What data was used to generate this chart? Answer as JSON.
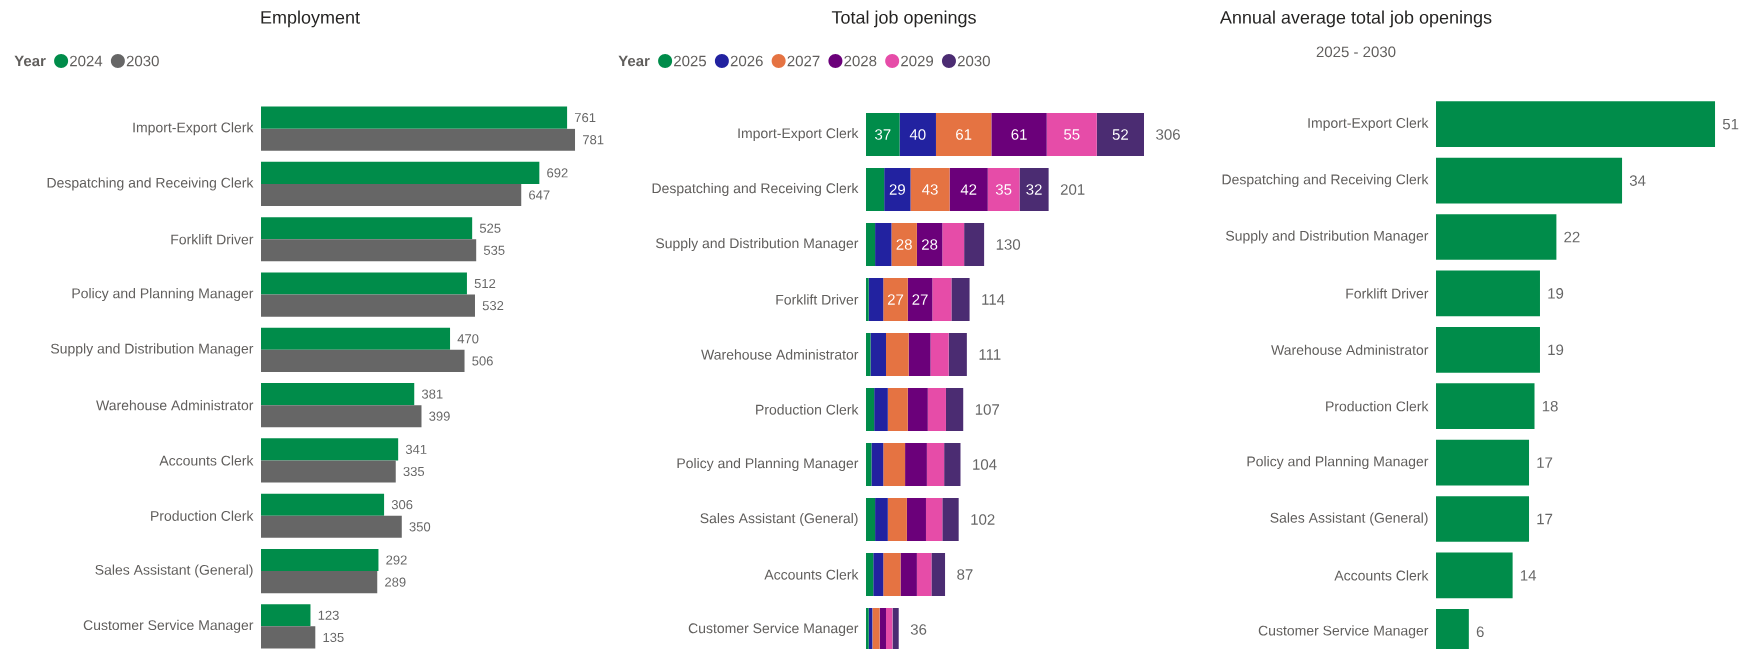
{
  "chart_data": [
    {
      "type": "bar",
      "orientation": "horizontal",
      "title": "Employment",
      "legend": "top left",
      "legend_title": "Year",
      "data_labels": true,
      "categories": [
        "Import-Export Clerk",
        "Despatching and Receiving Clerk",
        "Forklift Driver",
        "Policy and Planning Manager",
        "Supply and Distribution Manager",
        "Warehouse Administrator",
        "Accounts Clerk",
        "Production Clerk",
        "Sales Assistant (General)",
        "Customer Service Manager"
      ],
      "series": [
        {
          "name": "2024",
          "color": "#008c4a",
          "values": [
            761,
            692,
            525,
            512,
            470,
            381,
            341,
            306,
            292,
            123
          ]
        },
        {
          "name": "2030",
          "color": "#666666",
          "values": [
            781,
            647,
            535,
            532,
            506,
            399,
            335,
            350,
            289,
            135
          ]
        }
      ]
    },
    {
      "type": "bar",
      "orientation": "horizontal",
      "stacked": true,
      "title": "Total job openings",
      "legend": "top left",
      "legend_title": "Year",
      "categories": [
        "Import-Export Clerk",
        "Despatching and Receiving Clerk",
        "Supply and Distribution Manager",
        "Forklift Driver",
        "Warehouse Administrator",
        "Production Clerk",
        "Policy and Planning Manager",
        "Sales Assistant (General)",
        "Accounts Clerk",
        "Customer Service Manager"
      ],
      "series": [
        {
          "name": "2025",
          "color": "#008c4a",
          "values": [
            37,
            20,
            10,
            3,
            5,
            9,
            6,
            10,
            8,
            3
          ],
          "value_labels": [
            "37",
            null,
            null,
            null,
            null,
            null,
            null,
            null,
            null,
            null
          ]
        },
        {
          "name": "2026",
          "color": "#2222a0",
          "values": [
            40,
            29,
            18,
            16,
            17,
            15,
            13,
            14,
            11,
            4
          ],
          "value_labels": [
            "40",
            "29",
            null,
            null,
            null,
            null,
            null,
            null,
            null,
            null
          ]
        },
        {
          "name": "2027",
          "color": "#e57342",
          "values": [
            61,
            43,
            28,
            27,
            25,
            22,
            24,
            21,
            19,
            8
          ],
          "value_labels": [
            "61",
            "43",
            "28",
            "27",
            null,
            null,
            null,
            null,
            null,
            null
          ]
        },
        {
          "name": "2028",
          "color": "#6b007a",
          "values": [
            61,
            42,
            28,
            27,
            24,
            22,
            24,
            21,
            18,
            7
          ],
          "value_labels": [
            "61",
            "42",
            "28",
            "27",
            null,
            null,
            null,
            null,
            null,
            null
          ]
        },
        {
          "name": "2029",
          "color": "#e64ca8",
          "values": [
            55,
            35,
            24,
            21,
            20,
            20,
            19,
            18,
            16,
            7
          ],
          "value_labels": [
            "55",
            "35",
            null,
            null,
            null,
            null,
            null,
            null,
            null,
            null
          ]
        },
        {
          "name": "2030",
          "color": "#4b2c72",
          "values": [
            52,
            32,
            22,
            20,
            20,
            19,
            18,
            18,
            15,
            7
          ],
          "value_labels": [
            "52",
            "32",
            null,
            null,
            null,
            null,
            null,
            null,
            null,
            null
          ]
        }
      ],
      "totals": [
        "306",
        "201",
        "130",
        "114",
        "111",
        "107",
        "104",
        "102",
        "87",
        "36"
      ]
    },
    {
      "type": "bar",
      "orientation": "horizontal",
      "title": "Annual average total job openings",
      "subtitle": "2025 - 2030",
      "data_labels": true,
      "categories": [
        "Import-Export Clerk",
        "Despatching and Receiving Clerk",
        "Supply and Distribution Manager",
        "Forklift Driver",
        "Warehouse Administrator",
        "Production Clerk",
        "Policy and Planning Manager",
        "Sales Assistant (General)",
        "Accounts Clerk",
        "Customer Service Manager"
      ],
      "values": [
        51,
        34,
        22,
        19,
        19,
        18,
        17,
        17,
        14,
        6
      ],
      "color": "#008c4a"
    }
  ]
}
